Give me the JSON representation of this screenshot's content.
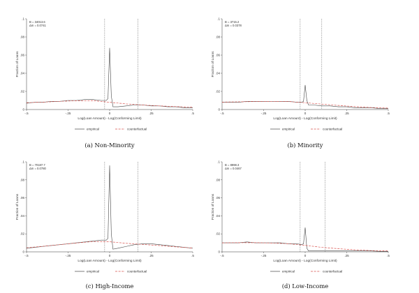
{
  "chart_data": [
    {
      "type": "line",
      "caption": "(a) Non-Minority",
      "annotations": [
        "B = 34013.6",
        "Δm = 0.0741"
      ],
      "xlabel": "Log(Loan Amount) - Log(Conforming Limit)",
      "ylabel": "Fraction of Loans",
      "xlim": [
        -0.5,
        0.5
      ],
      "ylim": [
        0,
        0.1
      ],
      "xticks": [
        -0.5,
        -0.25,
        0,
        0.25,
        0.5
      ],
      "xtick_labels": [
        "-.5",
        "-.25",
        "0",
        ".25",
        ".5"
      ],
      "yticks": [
        0,
        0.02,
        0.04,
        0.06,
        0.08,
        0.1
      ],
      "ytick_labels": [
        "0",
        ".02",
        ".04",
        ".06",
        ".08",
        ".1"
      ],
      "vlines": [
        -0.03,
        0.17
      ],
      "series": [
        {
          "name": "empirical",
          "color": "#444444",
          "style": "solid",
          "x": [
            -0.5,
            -0.45,
            -0.4,
            -0.35,
            -0.3,
            -0.25,
            -0.2,
            -0.15,
            -0.1,
            -0.05,
            -0.02,
            -0.01,
            0,
            0.01,
            0.02,
            0.05,
            0.1,
            0.15,
            0.2,
            0.25,
            0.3,
            0.35,
            0.4,
            0.45,
            0.5
          ],
          "y": [
            0.007,
            0.008,
            0.008,
            0.009,
            0.009,
            0.01,
            0.01,
            0.011,
            0.011,
            0.01,
            0.01,
            0.012,
            0.068,
            0.015,
            0.003,
            0.003,
            0.004,
            0.005,
            0.005,
            0.004,
            0.004,
            0.003,
            0.003,
            0.002,
            0.002
          ]
        },
        {
          "name": "counterfactual",
          "color": "#d9534f",
          "style": "dashed",
          "x": [
            -0.5,
            -0.4,
            -0.3,
            -0.2,
            -0.1,
            0,
            0.1,
            0.2,
            0.3,
            0.4,
            0.5
          ],
          "y": [
            0.0075,
            0.0082,
            0.009,
            0.0097,
            0.0098,
            0.008,
            0.0062,
            0.005,
            0.004,
            0.0032,
            0.0025
          ]
        }
      ],
      "legend": [
        "empirical",
        "counterfactual"
      ]
    },
    {
      "type": "line",
      "caption": "(b) Minority",
      "annotations": [
        "B = 3715.2",
        "Δm = 0.0378"
      ],
      "xlabel": "Log(Loan Amount) - Log(Conforming Limit)",
      "ylabel": "Fraction of Loans",
      "xlim": [
        -0.5,
        0.5
      ],
      "ylim": [
        0,
        0.1
      ],
      "xticks": [
        -0.5,
        -0.25,
        0,
        0.25,
        0.5
      ],
      "xtick_labels": [
        "-.5",
        "-.25",
        "0",
        ".25",
        ".5"
      ],
      "yticks": [
        0,
        0.02,
        0.04,
        0.06,
        0.08,
        0.1
      ],
      "ytick_labels": [
        "0",
        ".02",
        ".04",
        ".06",
        ".08",
        ".1"
      ],
      "vlines": [
        -0.03,
        0.1
      ],
      "series": [
        {
          "name": "empirical",
          "color": "#444444",
          "style": "solid",
          "x": [
            -0.5,
            -0.45,
            -0.4,
            -0.35,
            -0.3,
            -0.25,
            -0.2,
            -0.15,
            -0.1,
            -0.05,
            -0.02,
            -0.01,
            0,
            0.01,
            0.02,
            0.05,
            0.1,
            0.15,
            0.2,
            0.25,
            0.3,
            0.35,
            0.4,
            0.45,
            0.5
          ],
          "y": [
            0.008,
            0.008,
            0.008,
            0.009,
            0.009,
            0.009,
            0.009,
            0.009,
            0.009,
            0.008,
            0.008,
            0.009,
            0.027,
            0.01,
            0.005,
            0.005,
            0.004,
            0.004,
            0.003,
            0.003,
            0.002,
            0.002,
            0.002,
            0.001,
            0.001
          ]
        },
        {
          "name": "counterfactual",
          "color": "#d9534f",
          "style": "dashed",
          "x": [
            -0.5,
            -0.4,
            -0.3,
            -0.2,
            -0.1,
            0,
            0.1,
            0.2,
            0.3,
            0.4,
            0.5
          ],
          "y": [
            0.0082,
            0.0085,
            0.0088,
            0.009,
            0.0088,
            0.0075,
            0.006,
            0.0045,
            0.0032,
            0.0022,
            0.0015
          ]
        }
      ],
      "legend": [
        "empirical",
        "counterfactual"
      ]
    },
    {
      "type": "line",
      "caption": "(c) High-Income",
      "annotations": [
        "B = 70187.7",
        "Δm = 0.0780"
      ],
      "xlabel": "Log(Loan Amount) - Log(Conforming Limit)",
      "ylabel": "Fraction of Loans",
      "xlim": [
        -0.5,
        0.5
      ],
      "ylim": [
        0,
        0.1
      ],
      "xticks": [
        -0.5,
        -0.25,
        0,
        0.25,
        0.5
      ],
      "xtick_labels": [
        "-.5",
        "-.25",
        "0",
        ".25",
        ".5"
      ],
      "yticks": [
        0,
        0.02,
        0.04,
        0.06,
        0.08,
        0.1
      ],
      "ytick_labels": [
        "0",
        ".02",
        ".04",
        ".06",
        ".08",
        ".1"
      ],
      "vlines": [
        -0.03,
        0.17
      ],
      "series": [
        {
          "name": "empirical",
          "color": "#444444",
          "style": "solid",
          "x": [
            -0.5,
            -0.45,
            -0.4,
            -0.35,
            -0.3,
            -0.25,
            -0.2,
            -0.15,
            -0.1,
            -0.05,
            -0.02,
            -0.01,
            0,
            0.01,
            0.02,
            0.05,
            0.1,
            0.15,
            0.2,
            0.25,
            0.3,
            0.35,
            0.4,
            0.45,
            0.5
          ],
          "y": [
            0.004,
            0.005,
            0.006,
            0.007,
            0.008,
            0.009,
            0.01,
            0.011,
            0.012,
            0.013,
            0.013,
            0.015,
            0.096,
            0.02,
            0.003,
            0.004,
            0.006,
            0.008,
            0.009,
            0.009,
            0.008,
            0.007,
            0.006,
            0.005,
            0.004
          ]
        },
        {
          "name": "counterfactual",
          "color": "#d9534f",
          "style": "dashed",
          "x": [
            -0.5,
            -0.4,
            -0.3,
            -0.2,
            -0.1,
            0,
            0.1,
            0.2,
            0.3,
            0.4,
            0.5
          ],
          "y": [
            0.0045,
            0.0062,
            0.008,
            0.0098,
            0.0115,
            0.0112,
            0.0095,
            0.0082,
            0.007,
            0.0055,
            0.0042
          ]
        }
      ],
      "legend": [
        "empirical",
        "counterfactual"
      ]
    },
    {
      "type": "line",
      "caption": "(d) Low-Income",
      "annotations": [
        "B = 8998.3",
        "Δm = 0.0467"
      ],
      "xlabel": "Log(Loan Amount) - Log(Conforming Limit)",
      "ylabel": "Fraction of Loans",
      "xlim": [
        -0.5,
        0.5
      ],
      "ylim": [
        0,
        0.1
      ],
      "xticks": [
        -0.5,
        -0.25,
        0,
        0.25,
        0.5
      ],
      "xtick_labels": [
        "-.5",
        "-.25",
        "0",
        ".25",
        ".5"
      ],
      "yticks": [
        0,
        0.02,
        0.04,
        0.06,
        0.08,
        0.1
      ],
      "ytick_labels": [
        "0",
        ".02",
        ".04",
        ".06",
        ".08",
        ".1"
      ],
      "vlines": [
        -0.03,
        0.12
      ],
      "series": [
        {
          "name": "empirical",
          "color": "#444444",
          "style": "solid",
          "x": [
            -0.5,
            -0.45,
            -0.4,
            -0.35,
            -0.3,
            -0.25,
            -0.2,
            -0.15,
            -0.1,
            -0.05,
            -0.02,
            -0.01,
            0,
            0.01,
            0.02,
            0.05,
            0.1,
            0.15,
            0.2,
            0.25,
            0.3,
            0.35,
            0.4,
            0.45,
            0.5
          ],
          "y": [
            0.01,
            0.01,
            0.01,
            0.011,
            0.01,
            0.01,
            0.01,
            0.01,
            0.009,
            0.009,
            0.008,
            0.009,
            0.027,
            0.004,
            0.001,
            0.001,
            0.001,
            0.001,
            0.001,
            0.001,
            0.001,
            0.001,
            0.001,
            0.0005,
            0.0005
          ]
        },
        {
          "name": "counterfactual",
          "color": "#d9534f",
          "style": "dashed",
          "x": [
            -0.5,
            -0.4,
            -0.3,
            -0.2,
            -0.1,
            0,
            0.1,
            0.2,
            0.3,
            0.4,
            0.5
          ],
          "y": [
            0.01,
            0.0102,
            0.0102,
            0.0098,
            0.009,
            0.0072,
            0.005,
            0.0035,
            0.0022,
            0.0014,
            0.001
          ]
        }
      ],
      "legend": [
        "empirical",
        "counterfactual"
      ]
    }
  ]
}
